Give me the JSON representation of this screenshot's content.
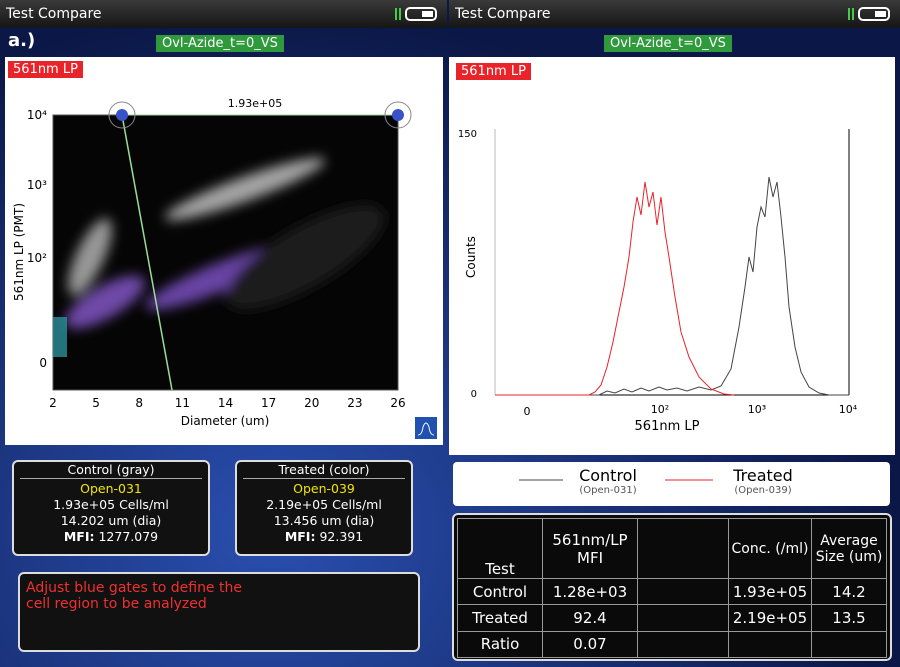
{
  "left": {
    "window_title": "Test Compare",
    "panel_label": "a.)",
    "sample": "Ovl-Azide_t=0_VS",
    "channel": "561nm LP",
    "gate_count": "1.93e+05",
    "y_axis_label": "561nm LP (PMT)",
    "x_axis_label": "Diameter (um)",
    "y_ticks": [
      "10⁴",
      "10³",
      "10²",
      "0"
    ],
    "x_ticks": [
      "2",
      "5",
      "8",
      "11",
      "14",
      "17",
      "20",
      "23",
      "26"
    ],
    "control": {
      "title": "Control (gray)",
      "id": "Open-031",
      "conc": "1.93e+05 Cells/ml",
      "size": "14.202 um (dia)",
      "mfi_label": "MFI:",
      "mfi": "1277.079"
    },
    "treated": {
      "title": "Treated (color)",
      "id": "Open-039",
      "conc": "2.19e+05 Cells/ml",
      "size": "13.456 um (dia)",
      "mfi_label": "MFI:",
      "mfi": "92.391"
    },
    "message": "Adjust blue gates to define the cell region to be analyzed"
  },
  "right": {
    "window_title": "Test Compare",
    "sample": "Ovl-Azide_t=0_VS",
    "channel": "561nm LP",
    "y_axis_label": "Counts",
    "x_axis_label": "561nm LP",
    "y_ticks": [
      "150",
      "0"
    ],
    "x_ticks": [
      "0",
      "10²",
      "10³",
      "10⁴"
    ],
    "legend": [
      {
        "name": "Control",
        "id": "(Open-031)"
      },
      {
        "name": "Treated",
        "id": "(Open-039)"
      }
    ],
    "table": {
      "header": [
        "Test",
        "561nm/LP MFI",
        "Conc. (/ml)",
        "Average Size (um)"
      ],
      "rows": [
        [
          "Control",
          "1.28e+03",
          "1.93e+05",
          "14.2"
        ],
        [
          "Treated",
          "92.4",
          "2.19e+05",
          "13.5"
        ],
        [
          "Ratio",
          "0.07"
        ]
      ]
    }
  }
}
